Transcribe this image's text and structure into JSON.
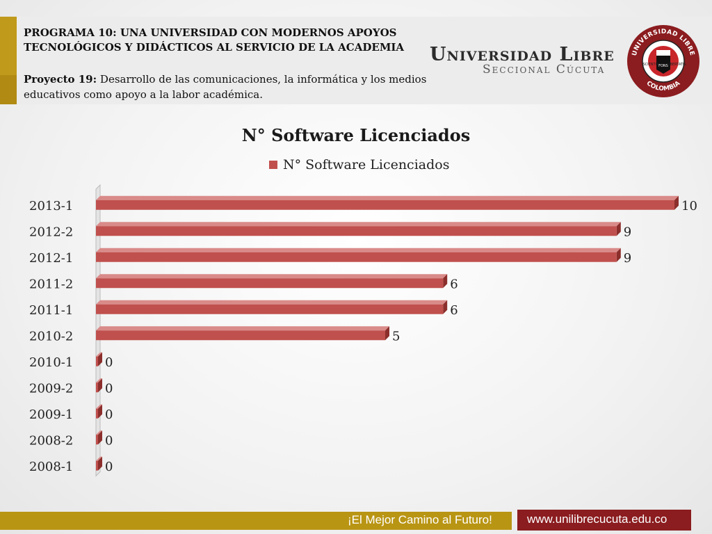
{
  "header": {
    "program_line1": "PROGRAMA 10: UNA UNIVERSIDAD CON MODERNOS APOYOS",
    "program_line2": "TECNOLÓGICOS Y DIDÁCTICOS AL SERVICIO DE LA  ACADEMIA",
    "project_label": "Proyecto 19:",
    "project_text": " Desarrollo de las comunicaciones, la informática y los medios educativos como apoyo a la labor académica."
  },
  "brand": {
    "name": "Universidad Libre",
    "sub": "Seccional Cúcuta",
    "seal_top": "UNIVERSIDAD LIBRE",
    "seal_bottom": "COLOMBIA",
    "seal_left": "SCIENTIA",
    "seal_center": "FONS",
    "seal_right": "LIBERTATIS"
  },
  "footer": {
    "slogan": "¡El Mejor Camino al Futuro!",
    "url": "www.unilibrecucuta.edu.co"
  },
  "colors": {
    "bar": "#c0504d",
    "gold": "#c09a1a",
    "brand_red": "#8b1c1f"
  },
  "chart_data": {
    "type": "bar",
    "orientation": "horizontal",
    "title": "N° Software Licenciados",
    "categories": [
      "2013-1",
      "2012-2",
      "2012-1",
      "2011-2",
      "2011-1",
      "2010-2",
      "2010-1",
      "2009-2",
      "2009-1",
      "2008-2",
      "2008-1"
    ],
    "series": [
      {
        "name": "N° Software Licenciados",
        "values": [
          10,
          9,
          9,
          6,
          6,
          5,
          0,
          0,
          0,
          0,
          0
        ]
      }
    ],
    "xlim": [
      0,
      10
    ],
    "legend": "top",
    "grid": false,
    "data_labels": true
  }
}
